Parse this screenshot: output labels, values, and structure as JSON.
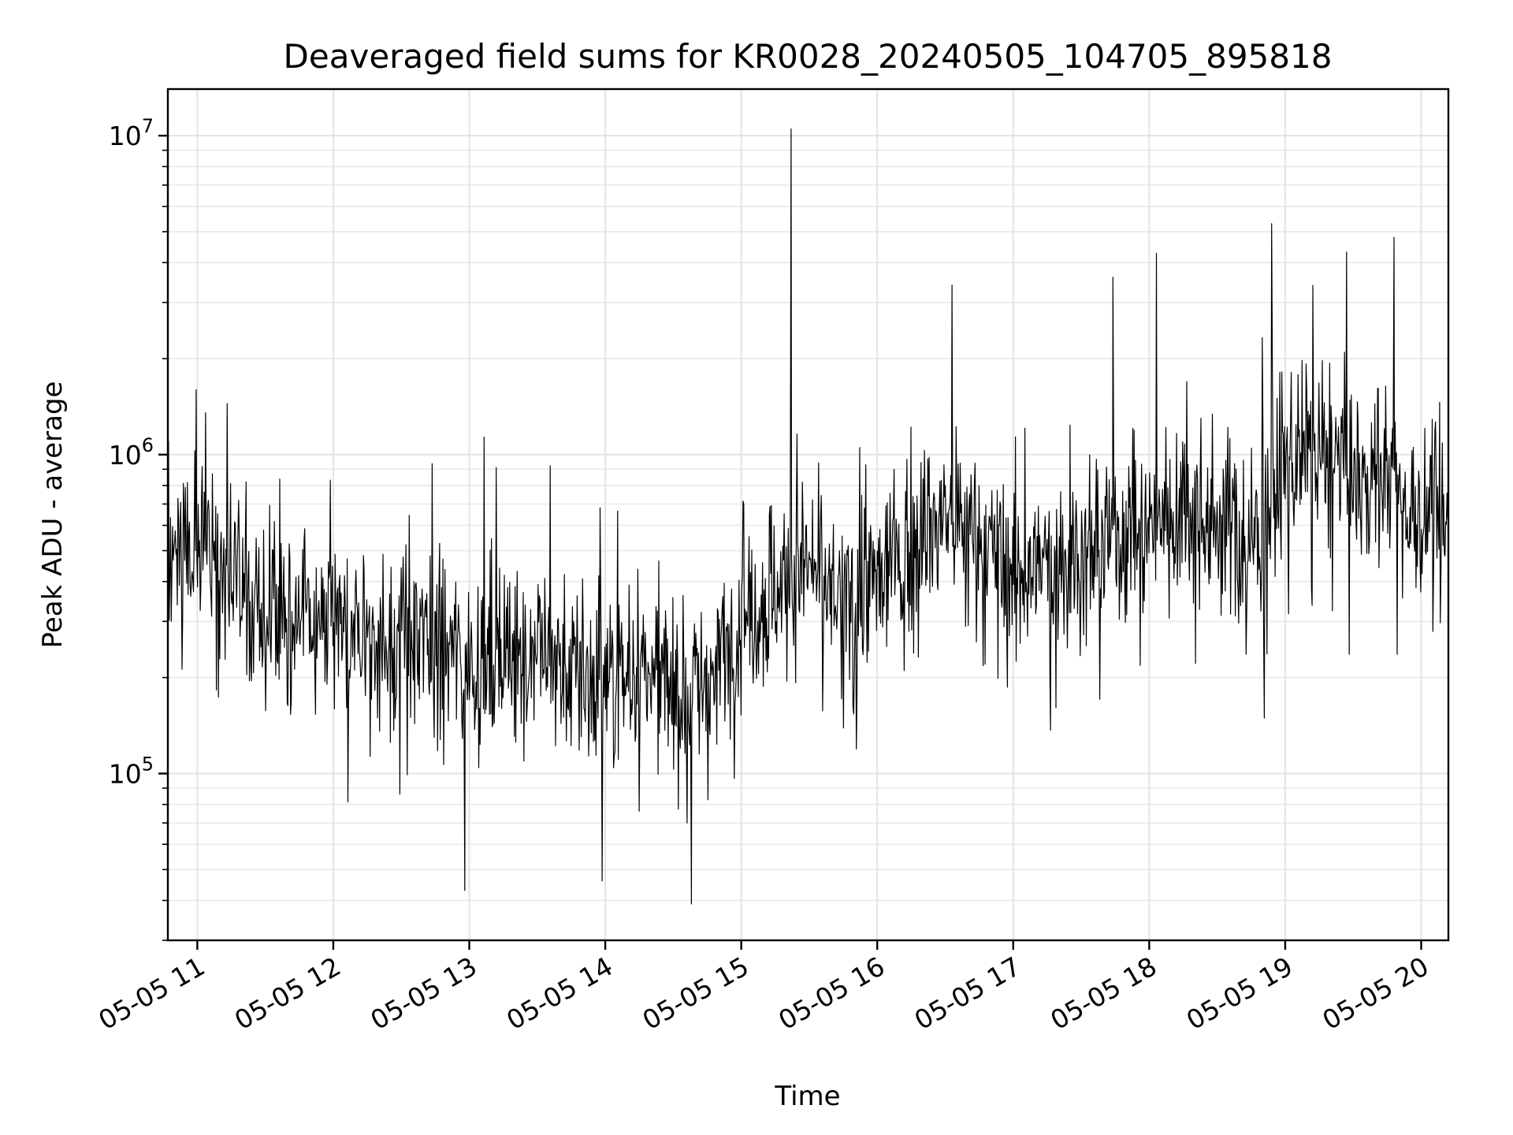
{
  "chart_data": {
    "type": "line",
    "title": "Deaveraged field sums for KR0028_20240505_104705_895818",
    "xlabel": "Time",
    "ylabel": "Peak ADU - average",
    "yscale": "log",
    "grid": true,
    "xlim": [
      "2024-05-05 10:47",
      "2024-05-05 20:12"
    ],
    "ylim": [
      30000,
      14000000
    ],
    "x_ticks": [
      "05-05 11",
      "05-05 12",
      "05-05 13",
      "05-05 14",
      "05-05 15",
      "05-05 16",
      "05-05 17",
      "05-05 18",
      "05-05 19",
      "05-05 20"
    ],
    "y_ticks": [
      {
        "base": "10",
        "exp": "5",
        "value": 100000
      },
      {
        "base": "10",
        "exp": "6",
        "value": 1000000
      },
      {
        "base": "10",
        "exp": "7",
        "value": 10000000
      }
    ],
    "series": [
      {
        "color": "#000000",
        "x": [
          "2024-05-05 10:47",
          "2024-05-05 11:00",
          "2024-05-05 11:15",
          "2024-05-05 11:30",
          "2024-05-05 11:45",
          "2024-05-05 12:00",
          "2024-05-05 12:15",
          "2024-05-05 12:30",
          "2024-05-05 12:45",
          "2024-05-05 13:00",
          "2024-05-05 13:15",
          "2024-05-05 13:30",
          "2024-05-05 13:45",
          "2024-05-05 14:00",
          "2024-05-05 14:15",
          "2024-05-05 14:30",
          "2024-05-05 14:45",
          "2024-05-05 15:00",
          "2024-05-05 15:15",
          "2024-05-05 15:30",
          "2024-05-05 15:45",
          "2024-05-05 16:00",
          "2024-05-05 16:15",
          "2024-05-05 16:30",
          "2024-05-05 16:45",
          "2024-05-05 17:00",
          "2024-05-05 17:15",
          "2024-05-05 17:30",
          "2024-05-05 17:45",
          "2024-05-05 18:00",
          "2024-05-05 18:15",
          "2024-05-05 18:30",
          "2024-05-05 18:45",
          "2024-05-05 19:00",
          "2024-05-05 19:15",
          "2024-05-05 19:30",
          "2024-05-05 19:45",
          "2024-05-05 20:00",
          "2024-05-05 20:12"
        ],
        "y": [
          500000,
          550000,
          400000,
          350000,
          300000,
          280000,
          260000,
          270000,
          250000,
          230000,
          220000,
          260000,
          200000,
          190000,
          210000,
          180000,
          190000,
          300000,
          380000,
          450000,
          330000,
          400000,
          520000,
          650000,
          550000,
          420000,
          450000,
          480000,
          550000,
          620000,
          700000,
          650000,
          500000,
          950000,
          950000,
          850000,
          900000,
          600000,
          700000
        ],
        "peaks": [
          {
            "x": "2024-05-05 12:58",
            "y": 43000
          },
          {
            "x": "2024-05-05 14:38",
            "y": 39000
          },
          {
            "x": "2024-05-05 15:22",
            "y": 10500000
          },
          {
            "x": "2024-05-05 18:54",
            "y": 5300000
          },
          {
            "x": "2024-05-05 19:48",
            "y": 4800000
          },
          {
            "x": "2024-05-05 16:33",
            "y": 3400000
          },
          {
            "x": "2024-05-05 17:44",
            "y": 3600000
          }
        ]
      }
    ]
  }
}
